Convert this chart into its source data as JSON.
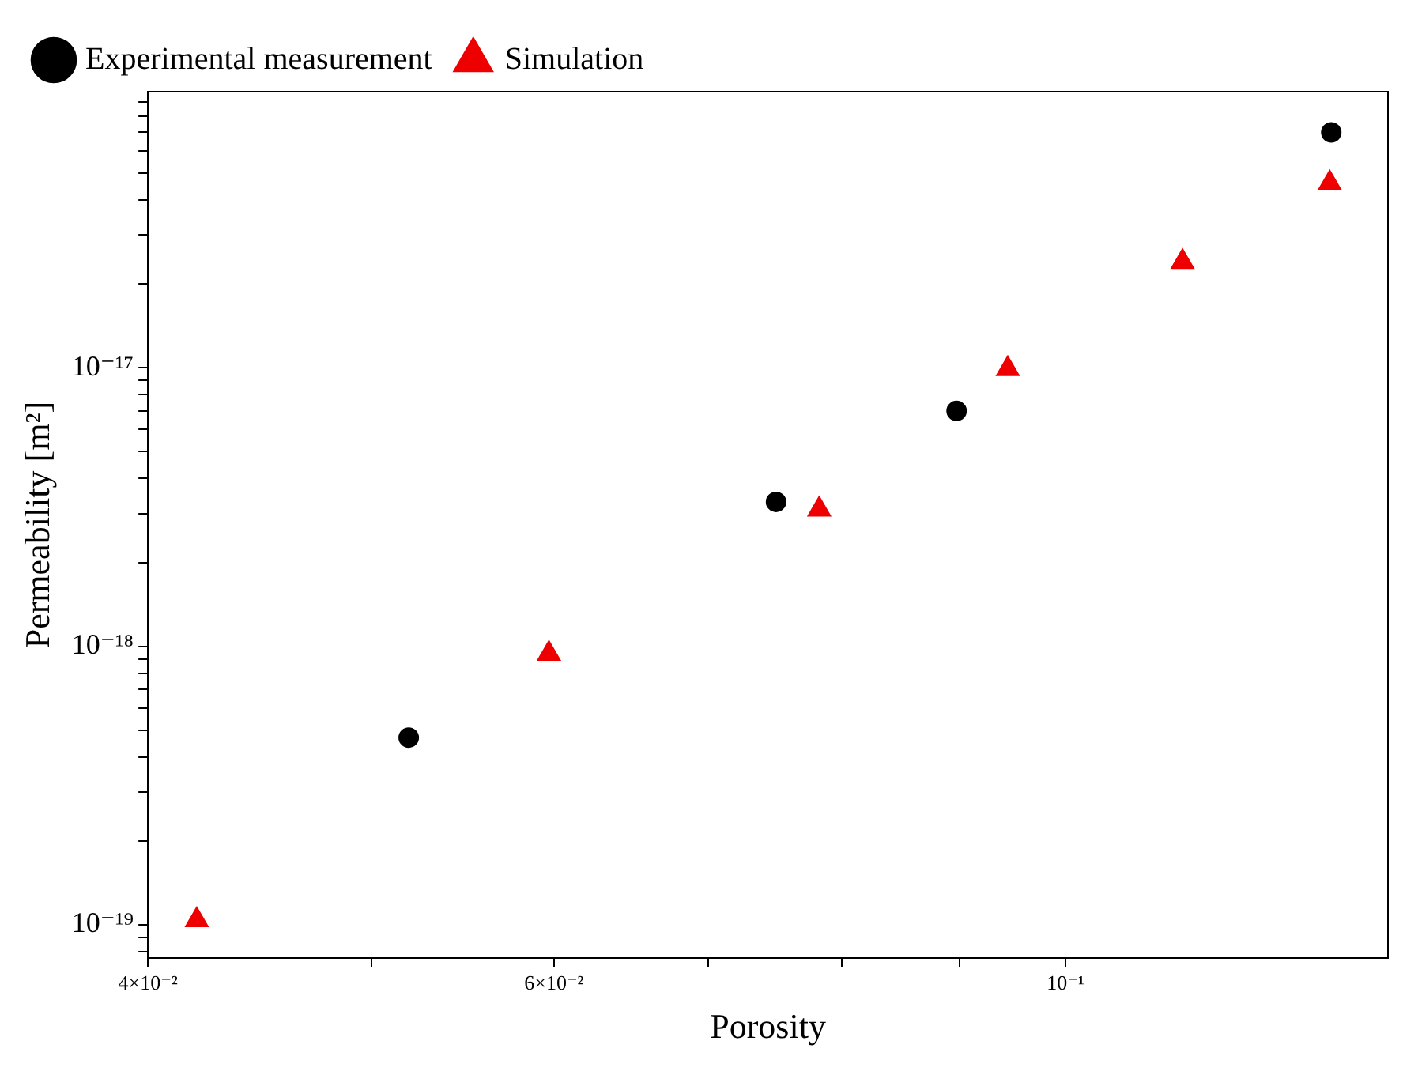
{
  "chart_data": {
    "type": "scatter",
    "xlabel": "Porosity",
    "ylabel": "Permeability [m²]",
    "log": "xy",
    "legend": "top left",
    "grid": false,
    "xlim": [
      0.04,
      0.138
    ],
    "xticks": [
      {
        "value": 0.04,
        "label": "4×10⁻²"
      },
      {
        "value": 0.05,
        "label": null
      },
      {
        "value": 0.06,
        "label": "6×10⁻²"
      },
      {
        "value": 0.07,
        "label": null
      },
      {
        "value": 0.08,
        "label": null
      },
      {
        "value": 0.09,
        "label": null
      },
      {
        "value": 0.1,
        "label": "10⁻¹"
      }
    ],
    "ylim": [
      7.6e-20,
      9.8e-17
    ],
    "yticks": [
      {
        "value": 8e-20,
        "label": null
      },
      {
        "value": 9e-20,
        "label": null
      },
      {
        "value": 1e-19,
        "label": "10⁻¹⁹"
      },
      {
        "value": 2e-19,
        "label": null
      },
      {
        "value": 3e-19,
        "label": null
      },
      {
        "value": 4e-19,
        "label": null
      },
      {
        "value": 5e-19,
        "label": null
      },
      {
        "value": 6e-19,
        "label": null
      },
      {
        "value": 7e-19,
        "label": null
      },
      {
        "value": 8e-19,
        "label": null
      },
      {
        "value": 9e-19,
        "label": null
      },
      {
        "value": 1e-18,
        "label": "10⁻¹⁸"
      },
      {
        "value": 2e-18,
        "label": null
      },
      {
        "value": 3e-18,
        "label": null
      },
      {
        "value": 4e-18,
        "label": null
      },
      {
        "value": 5e-18,
        "label": null
      },
      {
        "value": 6e-18,
        "label": null
      },
      {
        "value": 7e-18,
        "label": null
      },
      {
        "value": 8e-18,
        "label": null
      },
      {
        "value": 9e-18,
        "label": null
      },
      {
        "value": 1e-17,
        "label": "10⁻¹⁷"
      },
      {
        "value": 2e-17,
        "label": null
      },
      {
        "value": 3e-17,
        "label": null
      },
      {
        "value": 4e-17,
        "label": null
      },
      {
        "value": 5e-17,
        "label": null
      },
      {
        "value": 6e-17,
        "label": null
      },
      {
        "value": 7e-17,
        "label": null
      },
      {
        "value": 8e-17,
        "label": null
      },
      {
        "value": 9e-17,
        "label": null
      }
    ],
    "series": [
      {
        "name": "Experimental measurement",
        "color": "#000000",
        "marker": "circle",
        "x": [
          0.0519,
          0.0749,
          0.0897,
          0.1304
        ],
        "values": [
          4.7e-19,
          3.3e-18,
          7e-18,
          7e-17
        ]
      },
      {
        "name": "Simulation",
        "color": "#ee0000",
        "marker": "triangle",
        "x": [
          0.042,
          0.0597,
          0.0782,
          0.0944,
          0.1124,
          0.1302
        ],
        "values": [
          1.04e-19,
          9.4e-19,
          3.1e-18,
          9.9e-18,
          2.4e-17,
          4.6e-17
        ]
      }
    ]
  }
}
